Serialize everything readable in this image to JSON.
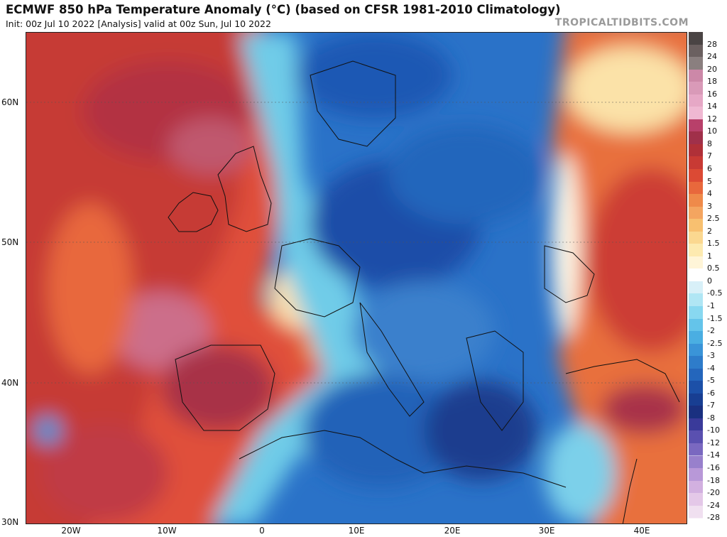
{
  "header": {
    "title": "ECMWF 850 hPa Temperature Anomaly (°C) (based on CFSR 1981-2010 Climatology)",
    "subtitle": "Init: 00z Jul 10 2022   [Analysis]   valid at 00z Sun, Jul 10 2022",
    "brand": "TROPICALTIDBITS.COM"
  },
  "axes": {
    "lat_labels": [
      "60N",
      "50N",
      "40N",
      "30N"
    ],
    "lon_labels": [
      "20W",
      "10W",
      "0",
      "10E",
      "20E",
      "30E",
      "40E"
    ]
  },
  "colorbar": {
    "levels": [
      "28",
      "24",
      "20",
      "18",
      "16",
      "14",
      "12",
      "10",
      "8",
      "7",
      "6",
      "5",
      "4",
      "3",
      "2.5",
      "2",
      "1.5",
      "1",
      "0.5",
      "0",
      "-0.5",
      "-1",
      "-1.5",
      "-2",
      "-2.5",
      "-3",
      "-4",
      "-5",
      "-6",
      "-7",
      "-8",
      "-10",
      "-12",
      "-14",
      "-16",
      "-18",
      "-20",
      "-24",
      "-28"
    ],
    "colors": [
      "#4a4444",
      "#6b6060",
      "#8a7f7f",
      "#cc88a8",
      "#d99ab8",
      "#e6a8c6",
      "#efb8d2",
      "#b8406a",
      "#a0304a",
      "#b03038",
      "#c83a34",
      "#dc4a34",
      "#e8683c",
      "#ef8a4a",
      "#f4a560",
      "#f8c070",
      "#fbd890",
      "#fdeab0",
      "#fff5d8",
      "#ffffff",
      "#d8f0f8",
      "#b0e6f4",
      "#88d8f0",
      "#64c4ea",
      "#4aaee2",
      "#3a94d8",
      "#2e7cca",
      "#2466bc",
      "#1c50a8",
      "#183e92",
      "#1a3080",
      "#3a3a9a",
      "#5a50b0",
      "#7a68c0",
      "#9880cc",
      "#b898d8",
      "#d2b0e0",
      "#e4c8e8",
      "#f0e0f0"
    ]
  }
}
